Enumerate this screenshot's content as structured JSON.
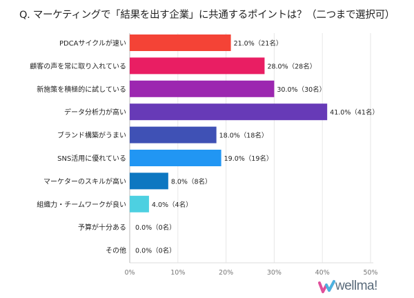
{
  "chart_data": {
    "type": "bar",
    "orientation": "horizontal",
    "title": "Q. マーケティングで「結果を出す企業」に共通するポイントは？（二つまで選択可）",
    "categories": [
      "PDCAサイクルが速い",
      "顧客の声を常に取り入れている",
      "新施策を積極的に試している",
      "データ分析力が高い",
      "ブランド構築がうまい",
      "SNS活用に優れている",
      "マーケターのスキルが高い",
      "組織力・チームワークが良い",
      "予算が十分ある",
      "その他"
    ],
    "values": [
      21.0,
      28.0,
      30.0,
      41.0,
      18.0,
      19.0,
      8.0,
      4.0,
      0.0,
      0.0
    ],
    "data_labels": [
      "21.0%（21名）",
      "28.0%（28名）",
      "30.0%（30名）",
      "41.0%（41名）",
      "18.0%（18名）",
      "19.0%（19名）",
      "8.0%（8名）",
      "4.0%（4名）",
      "0.0%（0名）",
      "0.0%（0名）"
    ],
    "colors": [
      "#F44336",
      "#E91E63",
      "#9C27B0",
      "#673AB7",
      "#3F51B5",
      "#2196F3",
      "#0D77C1",
      "#4DD0E1",
      "#cccccc",
      "#cccccc"
    ],
    "xlim": [
      0,
      50
    ],
    "xticks": [
      "0%",
      "10%",
      "20%",
      "30%",
      "40%",
      "50%"
    ],
    "xtick_values": [
      0,
      10,
      20,
      30,
      40,
      50
    ],
    "grid": true,
    "xlabel": "",
    "ylabel": ""
  },
  "logo": {
    "text": "wellma!"
  }
}
